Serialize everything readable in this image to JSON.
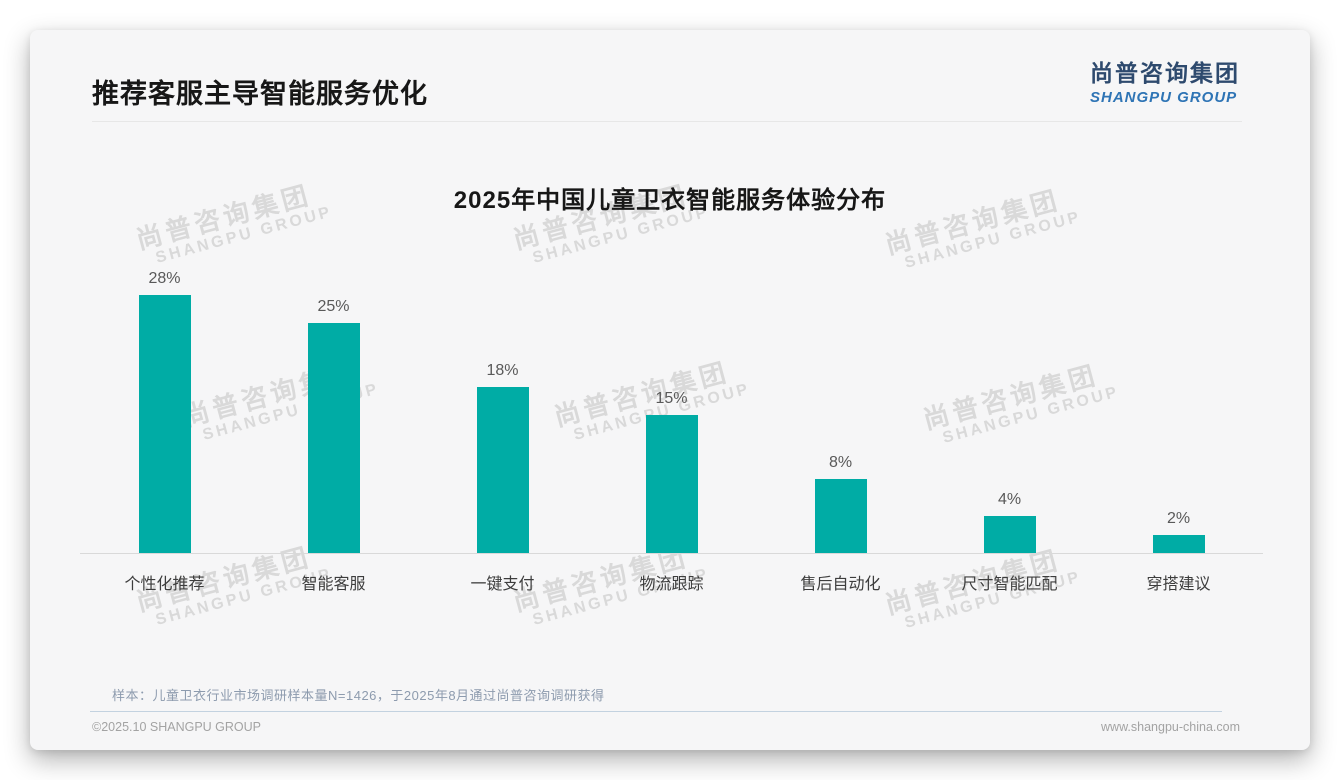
{
  "page": {
    "title": "推荐客服主导智能服务优化",
    "logo": {
      "cn": "尚普咨询集团",
      "en": "SHANGPU GROUP"
    },
    "sample_note": "样本：儿童卫衣行业市场调研样本量N=1426，于2025年8月通过尚普咨询调研获得",
    "footer": {
      "copyright": "©2025.10 SHANGPU GROUP",
      "website": "www.shangpu-china.com"
    }
  },
  "watermark": {
    "line1": "尚普咨询集团",
    "line2": "SHANGPU GROUP"
  },
  "colors": {
    "bar": "#00ACA5",
    "logo_cn": "#2E4A6E",
    "logo_en": "#2E74B5",
    "note": "#8d9bae"
  },
  "chart_data": {
    "type": "bar",
    "title": "2025年中国儿童卫衣智能服务体验分布",
    "categories": [
      "个性化推荐",
      "智能客服",
      "一键支付",
      "物流跟踪",
      "售后自动化",
      "尺寸智能匹配",
      "穿搭建议"
    ],
    "values": [
      28,
      25,
      18,
      15,
      8,
      4,
      2
    ],
    "value_labels": [
      "28%",
      "25%",
      "18%",
      "15%",
      "8%",
      "4%",
      "2%"
    ],
    "unit": "%",
    "ylim": [
      0,
      30
    ],
    "xlabel": "",
    "ylabel": "",
    "grid": false,
    "legend": "none",
    "bar_color": "#00ACA5"
  }
}
